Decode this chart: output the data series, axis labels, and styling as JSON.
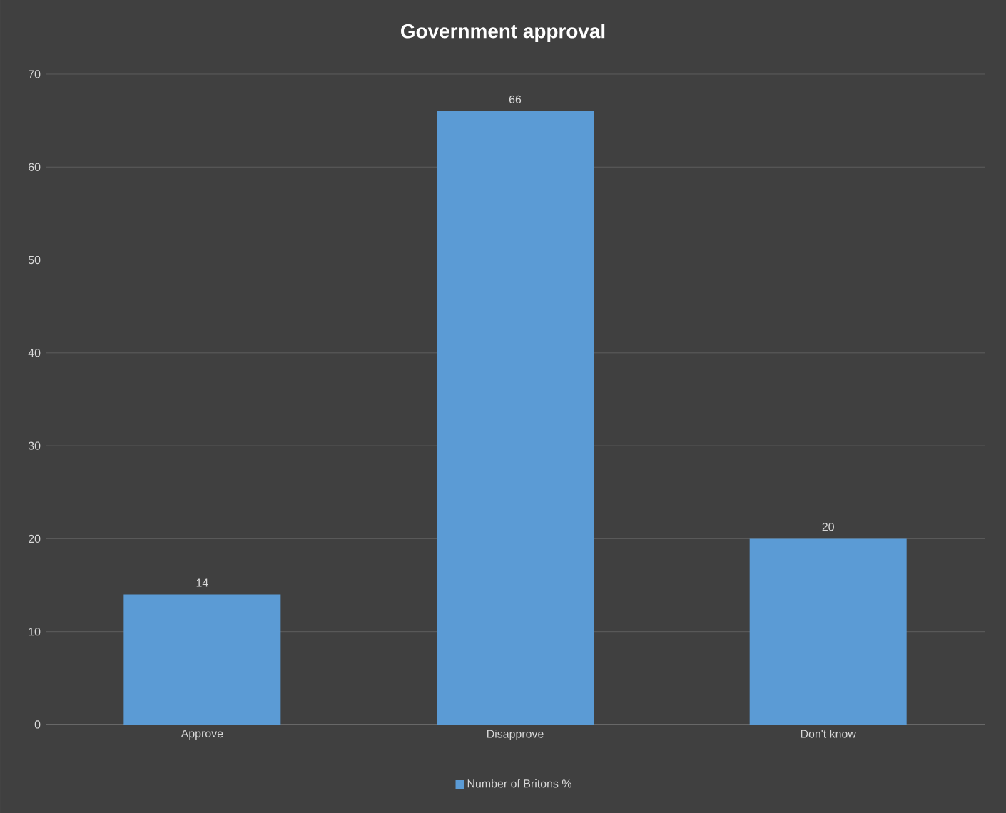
{
  "chart_data": {
    "type": "bar",
    "title": "Government  approval",
    "categories": [
      "Approve",
      "Disapprove",
      "Don't know"
    ],
    "series": [
      {
        "name": "Number of Britons %",
        "color": "#5b9bd5",
        "values": [
          14,
          66,
          20
        ]
      }
    ],
    "ylim": [
      0,
      70
    ],
    "yticks": [
      0,
      10,
      20,
      30,
      40,
      50,
      60,
      70
    ],
    "grid": "y",
    "legend": "bottom",
    "data_labels": true
  }
}
